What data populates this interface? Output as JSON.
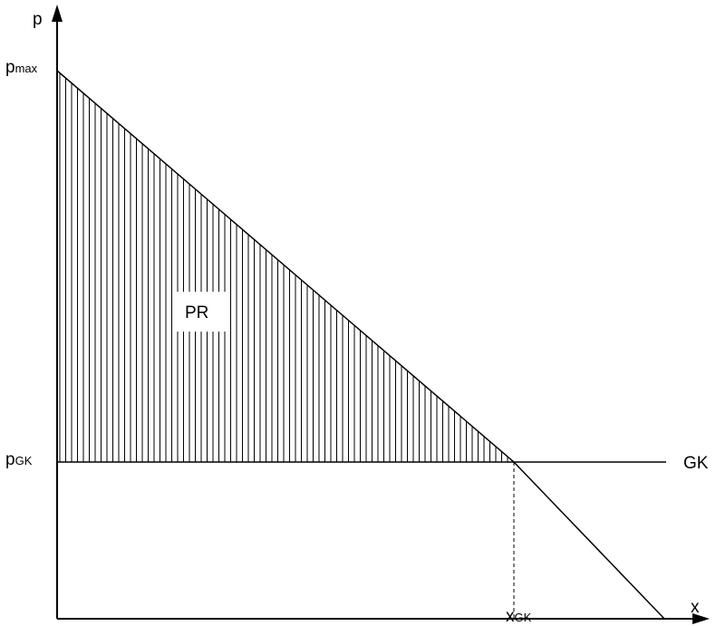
{
  "axes": {
    "y_label": "p",
    "x_label": "x"
  },
  "labels": {
    "pmax": {
      "main": "p",
      "sub": "max"
    },
    "pgk": {
      "main": "p",
      "sub": "GK"
    },
    "xgk": {
      "main": "x",
      "sub": "GK"
    },
    "gk": "GK",
    "pr": "PR"
  }
}
